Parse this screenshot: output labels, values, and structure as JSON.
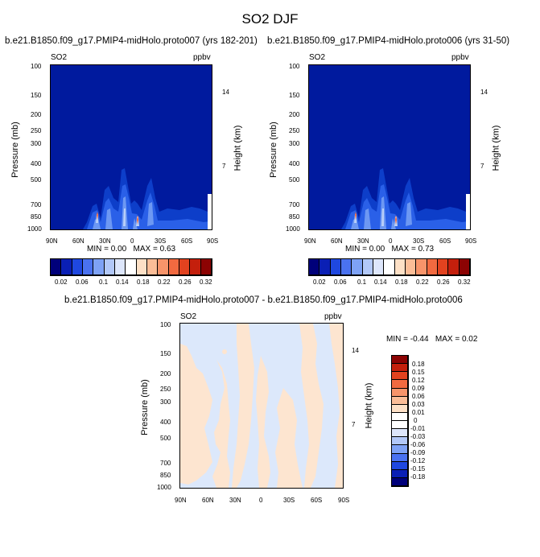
{
  "figure_title": "SO2 DJF",
  "chart_data": [
    {
      "type": "heatmap",
      "id": "left",
      "title": "b.e21.B1850.f09_g17.PMIP4-midHolo.proto007 (yrs 182-201)",
      "variable": "SO2",
      "units": "ppbv",
      "xlabel": "",
      "ylabel": "Pressure (mb)",
      "ylabel_right": "Height (km)",
      "x_ticks": [
        "90N",
        "60N",
        "30N",
        "0",
        "30S",
        "60S",
        "90S"
      ],
      "y_ticks": [
        "100",
        "150",
        "200",
        "250",
        "300",
        "400",
        "500",
        "700",
        "850",
        "1000"
      ],
      "y_right_ticks": [
        "14",
        "7"
      ],
      "stats": {
        "min_label": "MIN =",
        "min": "0.00",
        "max_label": "MAX =",
        "max": "0.63"
      },
      "colorbar": {
        "orientation": "horizontal",
        "labels": [
          "0.02",
          "0.06",
          "0.1",
          "0.14",
          "0.18",
          "0.22",
          "0.26",
          "0.32"
        ],
        "colors": [
          "#00007a",
          "#0a1fb5",
          "#1f48e0",
          "#4a72f0",
          "#7ea2f5",
          "#b2c8f8",
          "#dde6fb",
          "#ffffff",
          "#fde0c6",
          "#fbbd97",
          "#f7946a",
          "#f26a40",
          "#e2421f",
          "#c41f0c",
          "#8c0303"
        ]
      }
    },
    {
      "type": "heatmap",
      "id": "right",
      "title": "b.e21.B1850.f09_g17.PMIP4-midHolo.proto006 (yrs 31-50)",
      "variable": "SO2",
      "units": "ppbv",
      "xlabel": "",
      "ylabel": "Pressure (mb)",
      "ylabel_right": "Height (km)",
      "x_ticks": [
        "90N",
        "60N",
        "30N",
        "0",
        "30S",
        "60S",
        "90S"
      ],
      "y_ticks": [
        "100",
        "150",
        "200",
        "250",
        "300",
        "400",
        "500",
        "700",
        "850",
        "1000"
      ],
      "y_right_ticks": [
        "14",
        "7"
      ],
      "stats": {
        "min_label": "MIN =",
        "min": "0.00",
        "max_label": "MAX =",
        "max": "0.73"
      },
      "colorbar": {
        "orientation": "horizontal",
        "labels": [
          "0.02",
          "0.06",
          "0.1",
          "0.14",
          "0.18",
          "0.22",
          "0.26",
          "0.32"
        ],
        "colors": [
          "#00007a",
          "#0a1fb5",
          "#1f48e0",
          "#4a72f0",
          "#7ea2f5",
          "#b2c8f8",
          "#dde6fb",
          "#ffffff",
          "#fde0c6",
          "#fbbd97",
          "#f7946a",
          "#f26a40",
          "#e2421f",
          "#c41f0c",
          "#8c0303"
        ]
      }
    },
    {
      "type": "heatmap",
      "id": "diff",
      "title": "b.e21.B1850.f09_g17.PMIP4-midHolo.proto007 - b.e21.B1850.f09_g17.PMIP4-midHolo.proto006",
      "variable": "SO2",
      "units": "ppbv",
      "xlabel": "",
      "ylabel": "Pressure (mb)",
      "ylabel_right": "Height (km)",
      "x_ticks": [
        "90N",
        "60N",
        "30N",
        "0",
        "30S",
        "60S",
        "90S"
      ],
      "y_ticks": [
        "100",
        "150",
        "200",
        "250",
        "300",
        "400",
        "500",
        "700",
        "850",
        "1000"
      ],
      "y_right_ticks": [
        "14",
        "7"
      ],
      "stats": {
        "min_label": "MIN =",
        "min": "-0.44",
        "max_label": "MAX =",
        "max": "0.02"
      },
      "colorbar": {
        "orientation": "vertical",
        "labels": [
          "0.18",
          "0.15",
          "0.12",
          "0.09",
          "0.06",
          "0.03",
          "0.01",
          "0",
          "-0.01",
          "-0.03",
          "-0.06",
          "-0.09",
          "-0.12",
          "-0.15",
          "-0.18"
        ],
        "colors": [
          "#8c0303",
          "#c41f0c",
          "#e2421f",
          "#f26a40",
          "#f7946a",
          "#fbbd97",
          "#fde0c6",
          "#ffffff",
          "#ffffff",
          "#dde6fb",
          "#b2c8f8",
          "#7ea2f5",
          "#4a72f0",
          "#1f48e0",
          "#0a1fb5",
          "#00007a"
        ]
      }
    }
  ]
}
